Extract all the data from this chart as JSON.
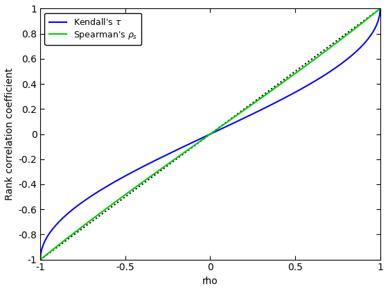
{
  "title": "",
  "xlabel": "rho",
  "ylabel": "Rank correlation coefficient",
  "xlim": [
    -1,
    1
  ],
  "ylim": [
    -1,
    1
  ],
  "xticks": [
    -1,
    -0.5,
    0,
    0.5,
    1
  ],
  "yticks": [
    -1,
    -0.8,
    -0.6,
    -0.4,
    -0.2,
    0,
    0.2,
    0.4,
    0.6,
    0.8,
    1
  ],
  "kendall_color": "#0000FF",
  "spearman_color": "#00CC00",
  "diagonal_color": "#000000",
  "line_width": 1.5,
  "legend_kendall": "Kendall's $\\tau$",
  "legend_spearman": "Spearman's $\\rho_s$",
  "figsize": [
    5.6,
    4.2
  ],
  "dpi": 100
}
